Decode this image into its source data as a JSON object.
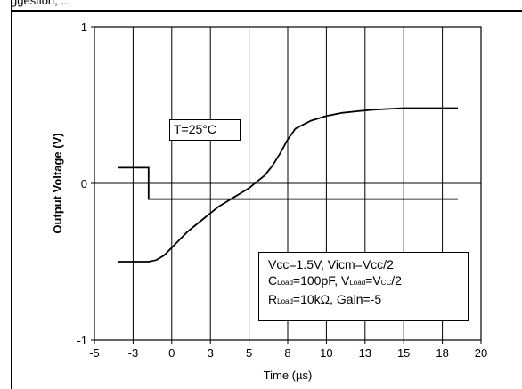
{
  "header_fragment": "ggestion, ...",
  "chart_data": {
    "type": "line",
    "title": "",
    "xlabel": "Time (µs)",
    "ylabel": "Output Voltage (V)",
    "xlim": [
      -5,
      20
    ],
    "ylim": [
      -1,
      1
    ],
    "x_ticks": [
      "-5",
      "-3",
      "0",
      "3",
      "5",
      "8",
      "10",
      "13",
      "15",
      "18",
      "20"
    ],
    "y_ticks": [
      "1",
      "0",
      "-1"
    ],
    "grid": true,
    "annotations": {
      "temperature": "T=25°C",
      "conditions_line1": "Vcc=1.5V, Vicm=Vcc/2",
      "conditions_line2_parts": [
        "C",
        "Load",
        "=100pF, V",
        "Load",
        "=V",
        "CC",
        "/2"
      ],
      "conditions_line3_parts": [
        "R",
        "Load",
        "=10kΩ, Gain=-5"
      ]
    },
    "series": [
      {
        "x": [
          -3.5,
          -1.5,
          -1.5,
          18.5
        ],
        "y": [
          0.1,
          0.1,
          -0.1,
          -0.1
        ]
      },
      {
        "x": [
          -3.5,
          -2.5,
          -1.5,
          -1.0,
          -0.5,
          0.0,
          0.5,
          1.0,
          1.5,
          2.0,
          2.5,
          3.0,
          3.5,
          4.0,
          4.5,
          5.0,
          5.5,
          6.0,
          6.5,
          7.0,
          7.5,
          8.0,
          9.0,
          10.0,
          11.0,
          12.0,
          13.0,
          14.0,
          15.0,
          16.0,
          17.0,
          18.5
        ],
        "y": [
          -0.5,
          -0.5,
          -0.5,
          -0.49,
          -0.46,
          -0.41,
          -0.36,
          -0.31,
          -0.27,
          -0.23,
          -0.19,
          -0.15,
          -0.12,
          -0.09,
          -0.06,
          -0.03,
          0.01,
          0.05,
          0.11,
          0.19,
          0.28,
          0.35,
          0.4,
          0.43,
          0.45,
          0.46,
          0.47,
          0.475,
          0.48,
          0.48,
          0.48,
          0.48
        ]
      }
    ]
  }
}
